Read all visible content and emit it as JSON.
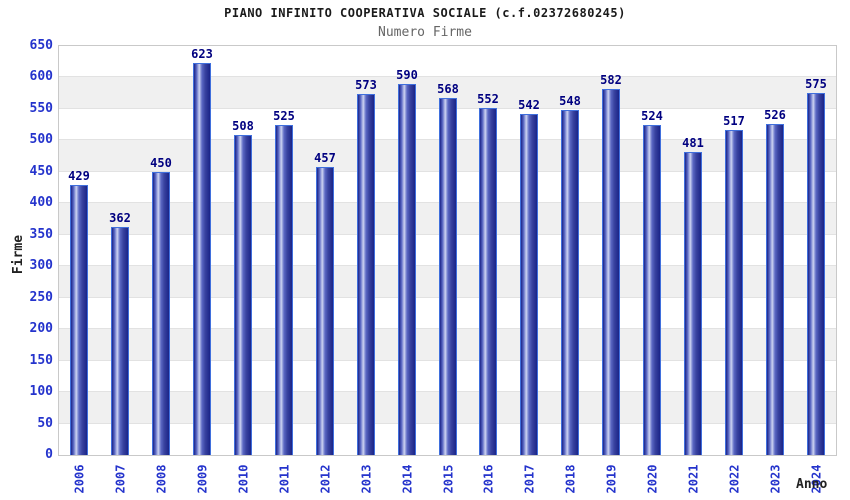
{
  "chart_data": {
    "type": "bar",
    "title": "PIANO INFINITO COOPERATIVA SOCIALE (c.f.02372680245)",
    "subtitle": "Numero Firme",
    "xlabel": "Anno",
    "ylabel": "Firme",
    "categories": [
      "2006",
      "2007",
      "2008",
      "2009",
      "2010",
      "2011",
      "2012",
      "2013",
      "2014",
      "2015",
      "2016",
      "2017",
      "2018",
      "2019",
      "2020",
      "2021",
      "2022",
      "2023",
      "2024"
    ],
    "values": [
      429,
      362,
      450,
      623,
      508,
      525,
      457,
      573,
      590,
      568,
      552,
      542,
      548,
      582,
      524,
      481,
      517,
      526,
      575
    ],
    "ylim": [
      0,
      650
    ],
    "ytick_step": 50,
    "grid": "horizontal lines every 50, alternating gray bands",
    "legend": "none",
    "bar_labels_shown": true,
    "colors": {
      "bar_outline": "#3f6fdd",
      "bar_dark": "#1b2488",
      "bar_mid_dark": "#39439f",
      "bar_mid": "#5b68c4",
      "bar_light": "#ccd3f1",
      "value_label": "#000080",
      "tick_label": "#2433cc",
      "band_gray": "#f0f0f0",
      "gridline": "#e2e2e2",
      "plot_border": "#c9c9c9",
      "title": "#1a1a1a",
      "subtitle": "#666666",
      "axis_title": "#222222"
    }
  }
}
